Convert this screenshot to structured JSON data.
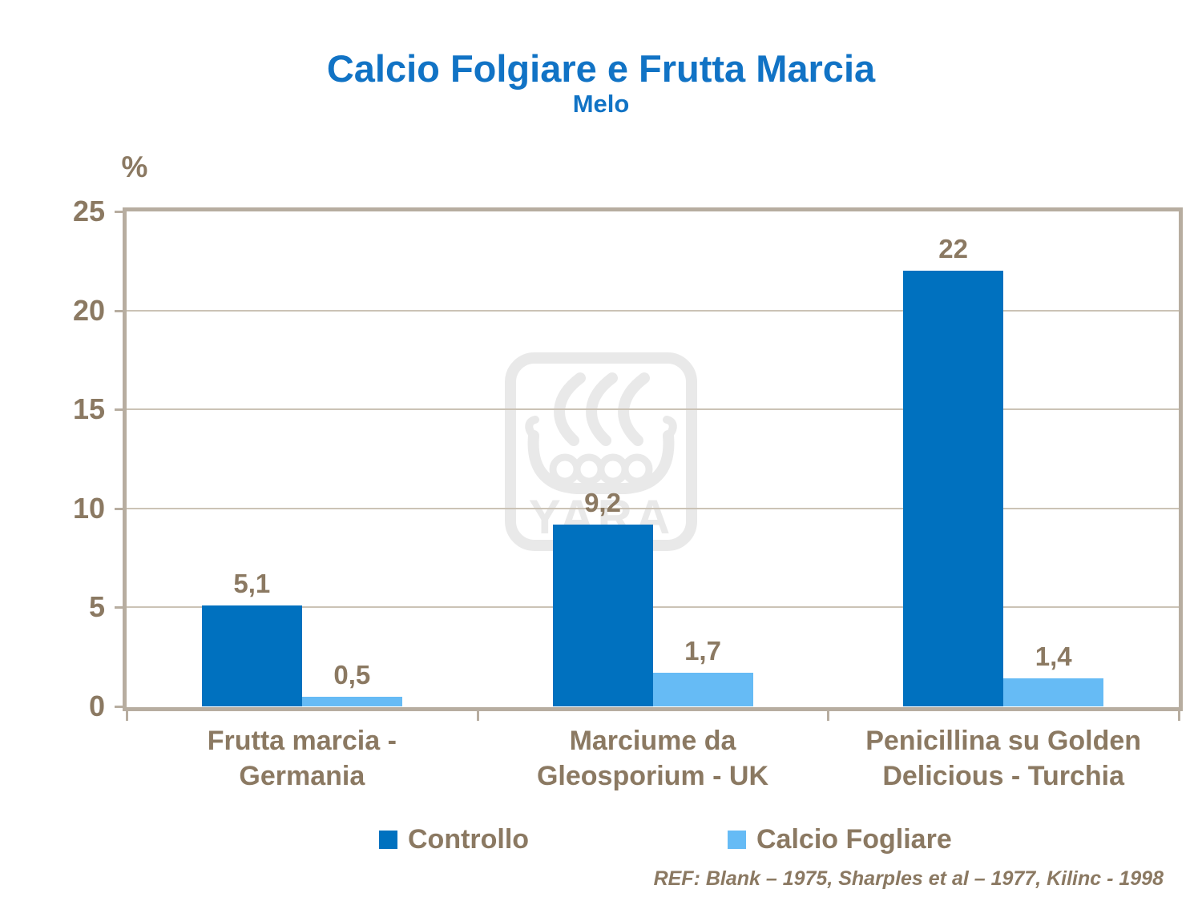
{
  "title": "Calcio Folgiare e Frutta Marcia",
  "subtitle": "Melo",
  "ref_text": "REF: Blank – 1975, Sharples et al – 1977, Kilinc - 1998",
  "watermark_text": "YARA",
  "colors": {
    "title_blue": "#1173c5",
    "text_brown": "#8b7962",
    "axis_border": "#b7ada0",
    "gridline": "#cbc3b6",
    "controllo_blue": "#0071bf",
    "calcio_light_blue": "#66bbf5",
    "watermark_gray": "#e9e9e9"
  },
  "chart_data": {
    "type": "bar",
    "title": "Calcio Folgiare e Frutta Marcia",
    "subtitle": "Melo",
    "ylabel": "%",
    "ylim": [
      0,
      25
    ],
    "yticks": [
      0,
      5,
      10,
      15,
      20,
      25
    ],
    "grid": true,
    "legend_position": "bottom",
    "categories": [
      "Frutta marcia - Germania",
      "Marciume da Gleosporium - UK",
      "Penicillina su Golden Delicious - Turchia"
    ],
    "categories_lines": [
      [
        "Frutta marcia -",
        "Germania"
      ],
      [
        "Marciume da",
        "Gleosporium  - UK"
      ],
      [
        "Penicillina su Golden",
        "Delicious - Turchia"
      ]
    ],
    "series": [
      {
        "name": "Controllo",
        "color": "#0071bf",
        "values": [
          5.1,
          9.2,
          22
        ],
        "value_labels": [
          "5,1",
          "9,2",
          "22"
        ]
      },
      {
        "name": "Calcio Fogliare",
        "color": "#66bbf5",
        "values": [
          0.5,
          1.7,
          1.4
        ],
        "value_labels": [
          "0,5",
          "1,7",
          "1,4"
        ]
      }
    ]
  }
}
